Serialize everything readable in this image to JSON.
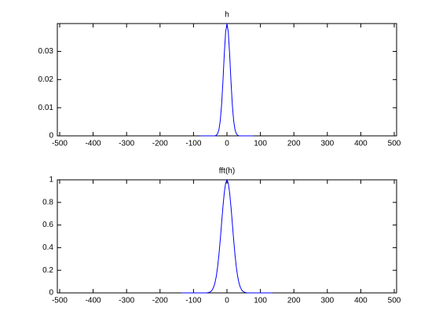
{
  "chart_data": [
    {
      "type": "line",
      "title": "h",
      "x": [
        -80,
        -76,
        -72,
        -68,
        -64,
        -60,
        -56,
        -52,
        -48,
        -44,
        -40,
        -36,
        -32,
        -28,
        -24,
        -20,
        -16,
        -12,
        -8,
        -4,
        0,
        4,
        8,
        12,
        16,
        20,
        24,
        28,
        32,
        36,
        40,
        44,
        48,
        52,
        56,
        60,
        64,
        68,
        72,
        76,
        80
      ],
      "series": [
        {
          "color": "#0000ff",
          "values": [
            0,
            0,
            0,
            0,
            0,
            0,
            0,
            0,
            0,
            0,
            0,
            0,
            0.0002,
            0.0008,
            0.0022,
            0.0054,
            0.0111,
            0.0194,
            0.029,
            0.0368,
            0.0399,
            0.0368,
            0.029,
            0.0194,
            0.0111,
            0.0054,
            0.0022,
            0.0008,
            0.0002,
            0,
            0,
            0,
            0,
            0,
            0,
            0,
            0,
            0,
            0,
            0,
            0
          ]
        }
      ],
      "xlim": [
        -507,
        507
      ],
      "xticks": [
        -500,
        -400,
        -300,
        -200,
        -100,
        0,
        100,
        200,
        300,
        400,
        500
      ],
      "ylim": [
        0,
        0.0399
      ],
      "yticks": [
        0,
        0.01,
        0.02,
        0.03
      ]
    },
    {
      "type": "line",
      "title": "fft(h)",
      "x": [
        -136,
        -132,
        -128,
        -124,
        -120,
        -116,
        -112,
        -108,
        -104,
        -100,
        -96,
        -92,
        -88,
        -84,
        -80,
        -76,
        -72,
        -68,
        -64,
        -60,
        -56,
        -52,
        -48,
        -44,
        -40,
        -36,
        -32,
        -28,
        -24,
        -20,
        -16,
        -12,
        -8,
        -4,
        0,
        4,
        8,
        12,
        16,
        20,
        24,
        28,
        32,
        36,
        40,
        44,
        48,
        52,
        56,
        60,
        64,
        68,
        72,
        76,
        80,
        84,
        88,
        92,
        96,
        100,
        104,
        108,
        112,
        116,
        120,
        124,
        128,
        132,
        136
      ],
      "series": [
        {
          "color": "#0000ff",
          "values": [
            0,
            0,
            0,
            0,
            0,
            0,
            0,
            0,
            0,
            0,
            0,
            0,
            0,
            0,
            0,
            0,
            0,
            0,
            0,
            0.001,
            0.003,
            0.006,
            0.013,
            0.026,
            0.049,
            0.087,
            0.145,
            0.229,
            0.338,
            0.471,
            0.618,
            0.762,
            0.886,
            0.97,
            1,
            0.97,
            0.886,
            0.762,
            0.618,
            0.471,
            0.338,
            0.229,
            0.145,
            0.087,
            0.049,
            0.026,
            0.013,
            0.006,
            0.003,
            0.001,
            0,
            0,
            0,
            0,
            0,
            0,
            0,
            0,
            0,
            0,
            0,
            0,
            0,
            0,
            0,
            0,
            0,
            0,
            0
          ]
        }
      ],
      "xlim": [
        -507,
        507
      ],
      "xticks": [
        -500,
        -400,
        -300,
        -200,
        -100,
        0,
        100,
        200,
        300,
        400,
        500
      ],
      "ylim": [
        0,
        1
      ],
      "yticks": [
        0,
        0.2,
        0.4,
        0.6,
        0.8,
        1
      ]
    }
  ]
}
